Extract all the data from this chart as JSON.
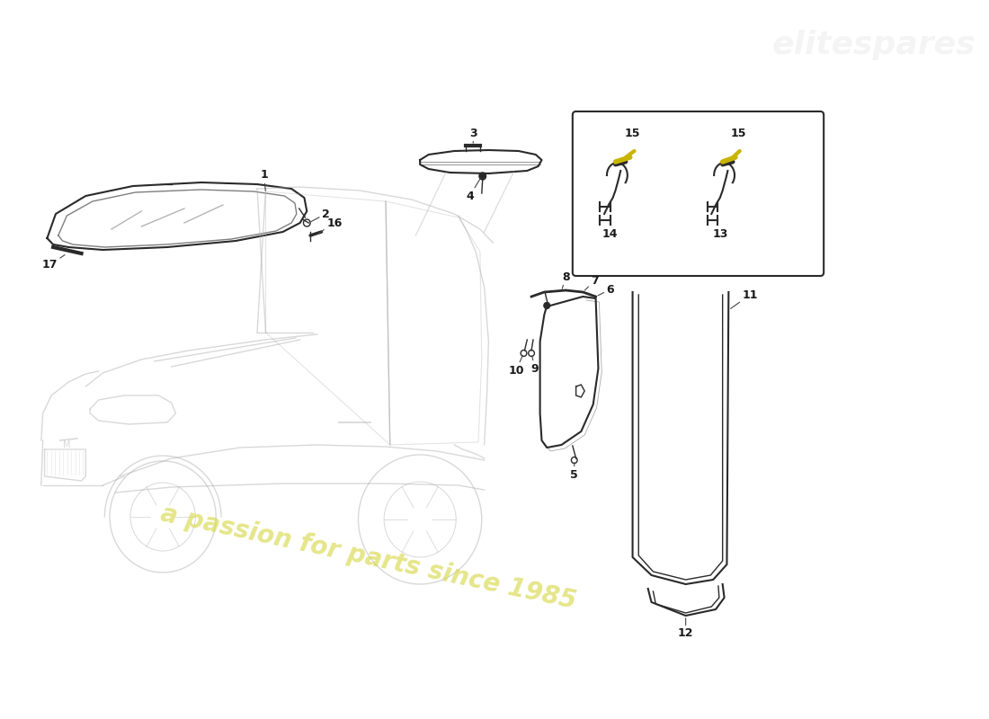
{
  "bg_color": "#ffffff",
  "line_color": "#2a2a2a",
  "car_color": "#aaaaaa",
  "watermark_text": "a passion for parts since 1985",
  "watermark_color": "#d8d84a",
  "yellow_wire": "#c8b400",
  "parts_label_color": "#1a1a1a"
}
